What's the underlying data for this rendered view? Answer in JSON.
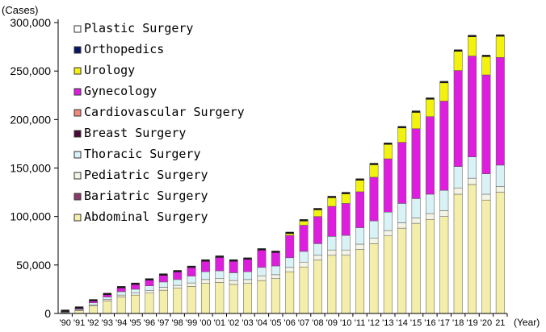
{
  "chart_data": {
    "type": "bar",
    "stacked": true,
    "title": "",
    "ylabel": "(Cases)",
    "xlabel": "(Year)",
    "ylim": [
      0,
      300000
    ],
    "yticks": [
      0,
      50000,
      100000,
      150000,
      200000,
      250000,
      300000
    ],
    "ytick_labels": [
      "0",
      "50,000",
      "100,000",
      "150,000",
      "200,000",
      "250,000",
      "300,000"
    ],
    "legend_position": "top-left",
    "categories": [
      "'90",
      "'91",
      "'92",
      "'93",
      "'94",
      "'95",
      "'96",
      "'97",
      "'98",
      "'99",
      "'00",
      "'01",
      "'02",
      "'03",
      "'04",
      "'05",
      "'06",
      "'07",
      "'08",
      "'09",
      "'10",
      "'11",
      "'12",
      "'13",
      "'14",
      "'15",
      "'16",
      "'17",
      "'18",
      "'19",
      "'20",
      "'21"
    ],
    "category_labels": [
      "'90",
      "'91",
      "'92",
      "'93",
      "'94",
      "'95",
      "'96",
      "'97",
      "'98",
      "'99",
      "'00",
      "'01",
      "'02",
      "'03",
      "'04",
      "'05",
      "'06",
      "'07",
      "'08",
      "'09",
      "'10",
      "'11",
      "'12",
      "'13",
      "'14",
      "'15",
      "'16",
      "'17",
      "'18",
      "'19",
      "'20",
      "21"
    ],
    "series": [
      {
        "name": "Abdominal Surgery",
        "color": "#f3eeaa",
        "values": [
          1000,
          3000,
          8000,
          13000,
          17000,
          19000,
          21000,
          24000,
          26000,
          28000,
          31000,
          32000,
          30000,
          31000,
          34000,
          36000,
          43000,
          48000,
          55000,
          60000,
          60000,
          66000,
          72000,
          80000,
          88000,
          93000,
          97000,
          100000,
          123000,
          133000,
          117000,
          125000
        ]
      },
      {
        "name": "Bariatric Surgery",
        "color": "#8a3a6a",
        "values": [
          0,
          0,
          0,
          0,
          0,
          0,
          0,
          0,
          0,
          0,
          0,
          0,
          0,
          0,
          0,
          0,
          0,
          0,
          0,
          0,
          0,
          0,
          0,
          0,
          0,
          0,
          0,
          0,
          0,
          0,
          0,
          0
        ]
      },
      {
        "name": "Pediatric Surgery",
        "color": "#f4f4e4",
        "values": [
          200,
          500,
          1000,
          1500,
          2000,
          2000,
          2500,
          3000,
          3000,
          3500,
          4000,
          4000,
          4000,
          4000,
          4500,
          4000,
          4500,
          5000,
          5000,
          5500,
          5500,
          5500,
          5500,
          5500,
          5500,
          5500,
          6000,
          6000,
          6500,
          6500,
          6000,
          6000
        ]
      },
      {
        "name": "Thoracic Surgery",
        "color": "#d8f2f6",
        "values": [
          500,
          1000,
          2000,
          2500,
          3500,
          4000,
          5000,
          5500,
          6000,
          7000,
          8000,
          8000,
          8000,
          8000,
          9000,
          9000,
          10000,
          11000,
          12000,
          14000,
          15000,
          17000,
          18000,
          19000,
          20000,
          20000,
          20000,
          21000,
          22000,
          22000,
          21000,
          22000
        ]
      },
      {
        "name": "Breast Surgery",
        "color": "#4a0a38",
        "values": [
          0,
          0,
          0,
          0,
          0,
          0,
          0,
          0,
          0,
          0,
          0,
          0,
          0,
          0,
          0,
          0,
          0,
          0,
          0,
          0,
          0,
          0,
          0,
          0,
          0,
          0,
          0,
          0,
          0,
          0,
          0,
          0
        ]
      },
      {
        "name": "Cardiovascular Surgery",
        "color": "#f08a7a",
        "values": [
          0,
          0,
          0,
          0,
          0,
          0,
          0,
          0,
          0,
          0,
          0,
          0,
          0,
          0,
          0,
          0,
          0,
          0,
          0,
          0,
          0,
          0,
          0,
          0,
          0,
          0,
          0,
          0,
          0,
          0,
          0,
          0
        ]
      },
      {
        "name": "Gynecology",
        "color": "#dd1fdd",
        "values": [
          500,
          1000,
          2000,
          2500,
          4000,
          5000,
          6000,
          7000,
          8000,
          9000,
          11000,
          14000,
          12000,
          13000,
          18000,
          14000,
          23000,
          27000,
          28000,
          31000,
          33000,
          37000,
          45000,
          55000,
          63000,
          72000,
          80000,
          92000,
          99000,
          104000,
          102000,
          111000
        ]
      },
      {
        "name": "Urology",
        "color": "#f2f20e",
        "values": [
          0,
          0,
          0,
          0,
          0,
          0,
          0,
          0,
          0,
          0,
          0,
          0,
          0,
          0,
          0,
          0,
          2000,
          4500,
          7000,
          9000,
          10000,
          12000,
          13000,
          15000,
          15000,
          17000,
          18000,
          19000,
          20000,
          20000,
          19000,
          22000
        ]
      },
      {
        "name": "Orthopedics",
        "color": "#0a1466",
        "values": [
          0,
          0,
          0,
          0,
          0,
          0,
          0,
          0,
          0,
          0,
          0,
          0,
          0,
          0,
          0,
          0,
          0,
          0,
          0,
          0,
          0,
          0,
          0,
          0,
          0,
          0,
          0,
          0,
          0,
          0,
          0,
          0
        ]
      },
      {
        "name": "Plastic Surgery",
        "color": "#ffffff",
        "values": [
          0,
          0,
          0,
          0,
          0,
          0,
          0,
          0,
          0,
          0,
          0,
          0,
          0,
          0,
          0,
          0,
          0,
          0,
          0,
          0,
          0,
          0,
          0,
          0,
          0,
          0,
          0,
          0,
          0,
          0,
          0,
          0
        ]
      }
    ],
    "legend_order": [
      "Plastic Surgery",
      "Orthopedics",
      "Urology",
      "Gynecology",
      "Cardiovascular Surgery",
      "Breast Surgery",
      "Thoracic Surgery",
      "Pediatric Surgery",
      "Bariatric Surgery",
      "Abdominal Surgery"
    ]
  }
}
